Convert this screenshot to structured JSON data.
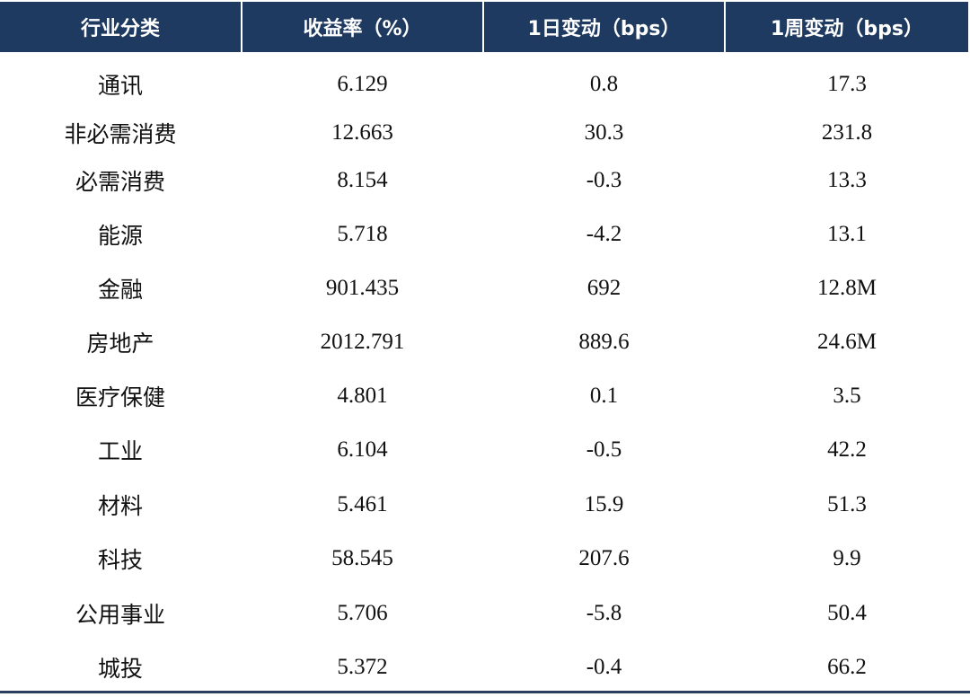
{
  "table": {
    "header": [
      "行业分类",
      "收益率（%）",
      "1日变动（bps）",
      "1周变动（bps）"
    ],
    "rows": [
      [
        "通讯",
        "6.129",
        "0.8",
        "17.3"
      ],
      [
        "非必需消费",
        "12.663",
        "30.3",
        "231.8"
      ],
      [
        "必需消费",
        "8.154",
        "-0.3",
        "13.3"
      ],
      [
        "能源",
        "5.718",
        "-4.2",
        "13.1"
      ],
      [
        "金融",
        "901.435",
        "692",
        "12.8M"
      ],
      [
        "房地产",
        "2012.791",
        "889.6",
        "24.6M"
      ],
      [
        "医疗保健",
        "4.801",
        "0.1",
        "3.5"
      ],
      [
        "工业",
        "6.104",
        "-0.5",
        "42.2"
      ],
      [
        "材料",
        "5.461",
        "15.9",
        "51.3"
      ],
      [
        "科技",
        "58.545",
        "207.6",
        "9.9"
      ],
      [
        "公用事业",
        "5.706",
        "-5.8",
        "50.4"
      ],
      [
        "城投",
        "5.372",
        "-0.4",
        "66.2"
      ]
    ]
  }
}
